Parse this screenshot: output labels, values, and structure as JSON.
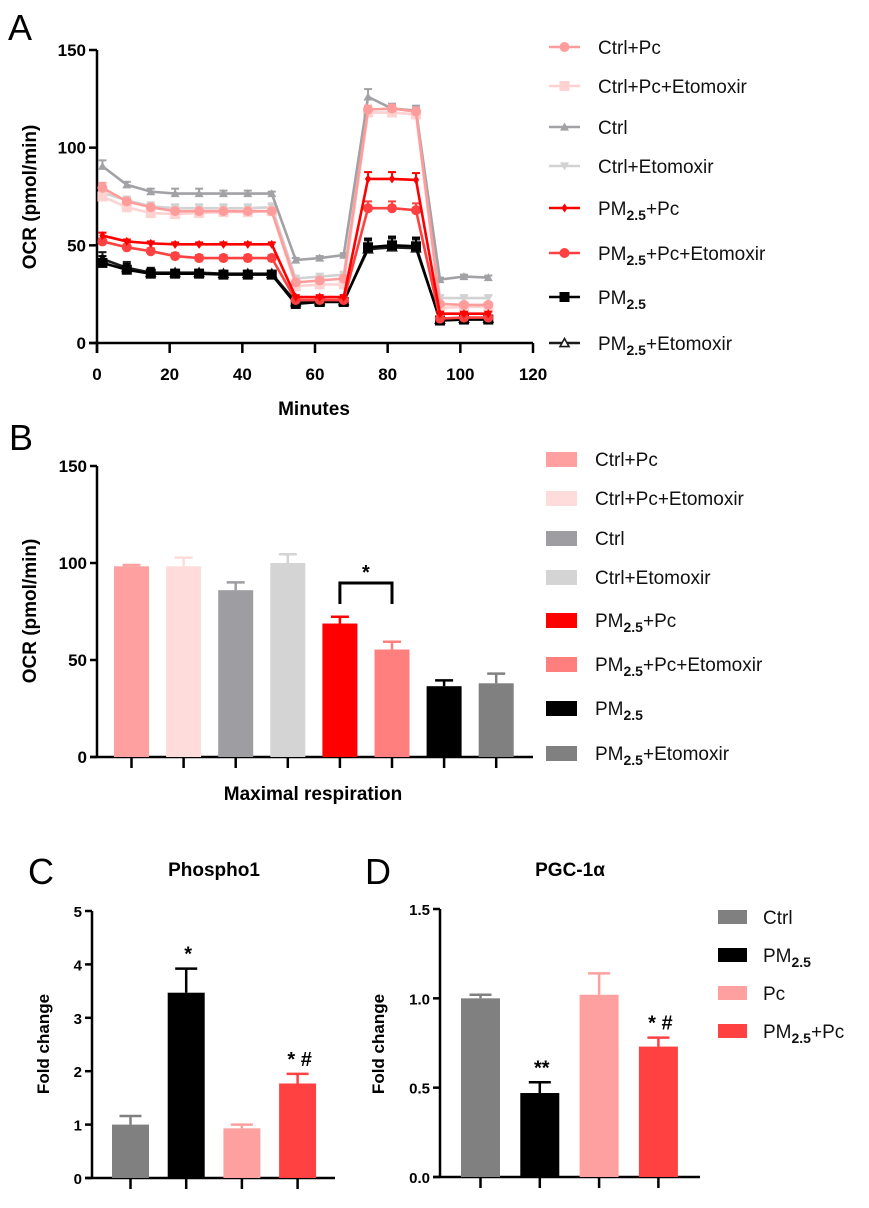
{
  "chart_data": [
    {
      "panel": "A",
      "type": "line",
      "title": "",
      "xlabel": "Minutes",
      "ylabel": "OCR (pmol/min)",
      "xlim": [
        0,
        120
      ],
      "ylim": [
        0,
        150
      ],
      "xticks": [
        "0",
        "20",
        "40",
        "60",
        "80",
        "100",
        "120"
      ],
      "yticks": [
        "0",
        "50",
        "100",
        "150"
      ],
      "legend_position": "right",
      "x": [
        1.5,
        8.2,
        14.8,
        21.5,
        28.1,
        34.8,
        41.5,
        48.1,
        54.7,
        61.3,
        67.9,
        74.6,
        81.2,
        87.8,
        94.4,
        101.0,
        107.7
      ],
      "series": [
        {
          "name": "Ctrl+Pc",
          "label_main": "Ctrl+Pc",
          "label_sub": "",
          "label_tail": "",
          "color": "#ff9d9d",
          "marker": "circle",
          "values": [
            79.5,
            72.5,
            69.5,
            67.5,
            67.5,
            67.5,
            67.5,
            67.5,
            31,
            32,
            33,
            119.5,
            120,
            118.5,
            20,
            19.5,
            19.5
          ],
          "errors": [
            2.5,
            1.5,
            1,
            1,
            1,
            1,
            1,
            1,
            1.5,
            1.5,
            1.5,
            2,
            2,
            2,
            1,
            1,
            1
          ]
        },
        {
          "name": "Ctrl+Pc+Etomoxir",
          "label_main": "Ctrl+Pc+Etomoxir",
          "label_sub": "",
          "label_tail": "",
          "color": "#ffd2d2",
          "marker": "square",
          "values": [
            75,
            69.5,
            66.5,
            66,
            66.5,
            67,
            67,
            67.5,
            29,
            30,
            30,
            118,
            118,
            117,
            18,
            18.5,
            18.5
          ],
          "errors": [
            2,
            1.5,
            1,
            1,
            1,
            1,
            1,
            1,
            1.5,
            1.5,
            1.5,
            2.5,
            2.5,
            2.5,
            1,
            1,
            1
          ]
        },
        {
          "name": "Ctrl",
          "label_main": "Ctrl",
          "label_sub": "",
          "label_tail": "",
          "color": "#a2a2a6",
          "marker": "triangle",
          "values": [
            90.5,
            81,
            77.5,
            76.5,
            76.5,
            76.5,
            76.5,
            76.5,
            42.5,
            43.5,
            45,
            126,
            120,
            119,
            32.5,
            34,
            33.5
          ],
          "errors": [
            3,
            1.5,
            1.5,
            2.5,
            2.5,
            1.5,
            1.5,
            1,
            1,
            1,
            1,
            4,
            2.5,
            2.5,
            1,
            1,
            1
          ]
        },
        {
          "name": "Ctrl+Etomoxir",
          "label_main": "Ctrl+Etomoxir",
          "label_sub": "",
          "label_tail": "",
          "color": "#d2d2d2",
          "marker": "triangle-down",
          "values": [
            77,
            73,
            70,
            69,
            69,
            69,
            69,
            69.5,
            33,
            34,
            35,
            118,
            118,
            117,
            23,
            23,
            23
          ],
          "errors": [
            3,
            2,
            2,
            2,
            2,
            2,
            2,
            2,
            1.5,
            1.5,
            1.5,
            3,
            3,
            3,
            1.5,
            1.5,
            1.5
          ]
        },
        {
          "name": "PM2.5+Pc",
          "label_main": "PM",
          "label_sub": "2.5",
          "label_tail": "+Pc",
          "color": "#ff0000",
          "marker": "diamond",
          "values": [
            55,
            52,
            51,
            50.5,
            50.5,
            50.5,
            50.5,
            50.5,
            23.5,
            23.5,
            23.5,
            84,
            84,
            83.5,
            15,
            15,
            15
          ],
          "errors": [
            1.5,
            1,
            1,
            1,
            1,
            1,
            1,
            1,
            1,
            1,
            1,
            3.5,
            3.5,
            3.5,
            1,
            1,
            1
          ]
        },
        {
          "name": "PM2.5+Pc+Etomoxir",
          "label_main": "PM",
          "label_sub": "2.5",
          "label_tail": "+Pc+Etomoxir",
          "color": "#ff4141",
          "marker": "circle",
          "values": [
            52,
            49,
            47,
            44.5,
            43.5,
            43.5,
            43.5,
            43.5,
            22,
            22,
            22,
            69,
            69,
            68,
            12.5,
            13,
            13
          ],
          "errors": [
            1.5,
            1.5,
            1.5,
            1.5,
            1.5,
            1.5,
            1.5,
            1.5,
            1,
            1,
            1,
            3.5,
            3.5,
            3.5,
            1,
            1,
            1
          ]
        },
        {
          "name": "PM2.5",
          "label_main": "PM",
          "label_sub": "2.5",
          "label_tail": "",
          "color": "#000000",
          "marker": "square",
          "values": [
            41,
            37.5,
            35.5,
            35.5,
            35.5,
            35,
            35,
            35,
            20,
            21,
            21,
            49,
            50,
            49.5,
            11.5,
            12,
            12
          ],
          "errors": [
            3.5,
            3,
            2.5,
            1.5,
            1.5,
            1.5,
            1.5,
            1.5,
            1,
            1,
            1,
            4.5,
            4.5,
            4.5,
            1,
            1,
            1
          ]
        },
        {
          "name": "PM2.5+Etomoxir",
          "label_main": "PM",
          "label_sub": "2.5",
          "label_tail": "+Etomoxir",
          "color": "#1a1a1a",
          "marker": "triangle-open",
          "values": [
            43,
            38.5,
            36,
            36,
            36,
            35.5,
            35.5,
            35.5,
            21,
            21.5,
            21.5,
            48,
            49,
            48.5,
            12,
            12.5,
            12.5
          ],
          "errors": [
            3.5,
            3,
            2.5,
            1.5,
            1.5,
            1.5,
            1.5,
            1.5,
            1,
            1,
            1,
            4.5,
            4.5,
            4.5,
            1,
            1,
            1
          ]
        }
      ]
    },
    {
      "panel": "B",
      "type": "bar",
      "title": "",
      "xlabel": "Maximal respiration",
      "ylabel": "OCR (pmol/min)",
      "ylim": [
        0,
        150
      ],
      "yticks": [
        "0",
        "50",
        "100",
        "150"
      ],
      "legend_position": "right",
      "categories": [
        "Ctrl+Pc",
        "Ctrl+Pc+Etomoxir",
        "Ctrl",
        "Ctrl+Etomoxir",
        "PM2.5+Pc",
        "PM2.5+Pc+Etomoxir",
        "PM2.5",
        "PM2.5+Etomoxir"
      ],
      "legend_labels": [
        {
          "main": "Ctrl+Pc",
          "sub": "",
          "tail": ""
        },
        {
          "main": "Ctrl+Pc+Etomoxir",
          "sub": "",
          "tail": ""
        },
        {
          "main": "Ctrl",
          "sub": "",
          "tail": ""
        },
        {
          "main": "Ctrl+Etomoxir",
          "sub": "",
          "tail": ""
        },
        {
          "main": "PM",
          "sub": "2.5",
          "tail": "+Pc"
        },
        {
          "main": "PM",
          "sub": "2.5",
          "tail": "+Pc+Etomoxir"
        },
        {
          "main": "PM",
          "sub": "2.5",
          "tail": ""
        },
        {
          "main": "PM",
          "sub": "2.5",
          "tail": "+Etomoxir"
        }
      ],
      "values": [
        98.3,
        98.3,
        86,
        100,
        68.8,
        55.4,
        36.5,
        38
      ],
      "errors": [
        0.7,
        4.5,
        4,
        4.5,
        3.5,
        4,
        3,
        5
      ],
      "colors": [
        "#ffa0a0",
        "#ffdcdc",
        "#9e9ea2",
        "#d4d4d4",
        "#ff0000",
        "#ff7f7f",
        "#000000",
        "#808080"
      ],
      "annotations": [
        {
          "text": "*",
          "between": [
            4,
            5
          ]
        }
      ]
    },
    {
      "panel": "C",
      "type": "bar",
      "title": "Phospho1",
      "xlabel": "",
      "ylabel": "Fold change",
      "ylim": [
        0,
        5
      ],
      "yticks": [
        "0",
        "1",
        "2",
        "3",
        "4",
        "5"
      ],
      "categories": [
        "Ctrl",
        "PM2.5",
        "Pc",
        "PM2.5+Pc"
      ],
      "values": [
        1.0,
        3.47,
        0.93,
        1.77
      ],
      "errors": [
        0.16,
        0.45,
        0.07,
        0.18
      ],
      "colors": [
        "#808080",
        "#000000",
        "#ffa0a0",
        "#ff4141"
      ],
      "annotations": [
        "",
        "*",
        "",
        "* #"
      ]
    },
    {
      "panel": "D",
      "type": "bar",
      "title": "PGC-1α",
      "xlabel": "",
      "ylabel": "Fold change",
      "ylim": [
        0,
        1.5
      ],
      "yticks": [
        "0.0",
        "0.5",
        "1.0",
        "1.5"
      ],
      "legend_position": "right",
      "categories": [
        "Ctrl",
        "PM2.5",
        "Pc",
        "PM2.5+Pc"
      ],
      "legend_labels": [
        {
          "main": "Ctrl",
          "sub": "",
          "tail": ""
        },
        {
          "main": "PM",
          "sub": "2.5",
          "tail": ""
        },
        {
          "main": "Pc",
          "sub": "",
          "tail": ""
        },
        {
          "main": "PM",
          "sub": "2.5",
          "tail": "+Pc"
        }
      ],
      "values": [
        1.0,
        0.47,
        1.02,
        0.73
      ],
      "errors": [
        0.02,
        0.06,
        0.12,
        0.05
      ],
      "colors": [
        "#808080",
        "#000000",
        "#ffa0a0",
        "#ff4141"
      ],
      "annotations": [
        "",
        "**",
        "",
        "* #"
      ]
    }
  ]
}
